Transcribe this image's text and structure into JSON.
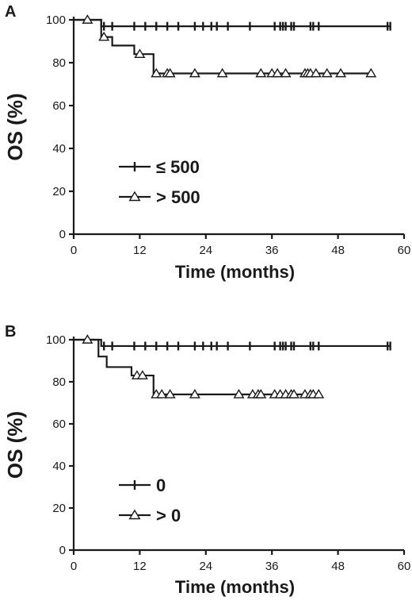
{
  "chart_data": [
    {
      "type": "line",
      "panel_label": "A",
      "xlabel": "Time (months)",
      "ylabel": "OS (%)",
      "xlim": [
        0,
        60
      ],
      "ylim": [
        0,
        100
      ],
      "x_ticks": [
        "0",
        "12",
        "24",
        "36",
        "48",
        "60"
      ],
      "y_ticks": [
        "0",
        "20",
        "40",
        "60",
        "80",
        "100"
      ],
      "legend_position": "lower-left",
      "series": [
        {
          "name": "≤ 500",
          "marker": "plus",
          "color": "#1a1a1a",
          "steps": [
            [
              0,
              100
            ],
            [
              5,
              97
            ],
            [
              57.5,
              97
            ]
          ],
          "censored": [
            [
              5.5,
              97
            ],
            [
              7,
              97
            ],
            [
              11,
              97
            ],
            [
              13,
              97
            ],
            [
              15,
              97
            ],
            [
              17,
              97
            ],
            [
              19,
              97
            ],
            [
              22,
              97
            ],
            [
              23.5,
              97
            ],
            [
              25,
              97
            ],
            [
              26,
              97
            ],
            [
              28,
              97
            ],
            [
              32,
              97
            ],
            [
              36.5,
              97
            ],
            [
              37.5,
              97
            ],
            [
              38,
              97
            ],
            [
              38.5,
              97
            ],
            [
              39.5,
              97
            ],
            [
              40,
              97
            ],
            [
              43,
              97
            ],
            [
              43.5,
              97
            ],
            [
              44.5,
              97
            ],
            [
              57,
              97
            ],
            [
              57.5,
              97
            ]
          ]
        },
        {
          "name": "> 500",
          "marker": "triangle",
          "color": "#1a1a1a",
          "steps": [
            [
              0,
              100
            ],
            [
              5,
              92
            ],
            [
              7,
              88
            ],
            [
              9,
              88
            ],
            [
              11,
              84
            ],
            [
              13,
              84
            ],
            [
              14.5,
              75
            ],
            [
              54,
              75
            ]
          ],
          "censored": [
            [
              2.5,
              100
            ],
            [
              5.5,
              92
            ],
            [
              12,
              84
            ],
            [
              15,
              75
            ],
            [
              17,
              75
            ],
            [
              17.5,
              75
            ],
            [
              22,
              75
            ],
            [
              27,
              75
            ],
            [
              34,
              75
            ],
            [
              36,
              75
            ],
            [
              37,
              75
            ],
            [
              38.5,
              75
            ],
            [
              42,
              75
            ],
            [
              42.5,
              75
            ],
            [
              43,
              75
            ],
            [
              44,
              75
            ],
            [
              46,
              75
            ],
            [
              48.5,
              75
            ],
            [
              54,
              75
            ]
          ]
        }
      ]
    },
    {
      "type": "line",
      "panel_label": "B",
      "xlabel": "Time (months)",
      "ylabel": "OS (%)",
      "xlim": [
        0,
        60
      ],
      "ylim": [
        0,
        100
      ],
      "x_ticks": [
        "0",
        "12",
        "24",
        "36",
        "48",
        "60"
      ],
      "y_ticks": [
        "0",
        "20",
        "40",
        "60",
        "80",
        "100"
      ],
      "legend_position": "lower-left",
      "series": [
        {
          "name": "0",
          "marker": "plus",
          "color": "#1a1a1a",
          "steps": [
            [
              0,
              100
            ],
            [
              5,
              97
            ],
            [
              57.5,
              97
            ]
          ],
          "censored": [
            [
              5.5,
              97
            ],
            [
              7,
              97
            ],
            [
              11,
              97
            ],
            [
              13,
              97
            ],
            [
              15,
              97
            ],
            [
              17,
              97
            ],
            [
              19,
              97
            ],
            [
              22,
              97
            ],
            [
              23.5,
              97
            ],
            [
              25,
              97
            ],
            [
              26,
              97
            ],
            [
              28,
              97
            ],
            [
              32,
              97
            ],
            [
              36.5,
              97
            ],
            [
              37.5,
              97
            ],
            [
              38,
              97
            ],
            [
              38.5,
              97
            ],
            [
              39.5,
              97
            ],
            [
              40,
              97
            ],
            [
              43,
              97
            ],
            [
              43.5,
              97
            ],
            [
              44.5,
              97
            ],
            [
              57,
              97
            ],
            [
              57.5,
              97
            ]
          ]
        },
        {
          "name": "> 0",
          "marker": "triangle",
          "color": "#1a1a1a",
          "steps": [
            [
              0,
              100
            ],
            [
              4.5,
              92
            ],
            [
              6,
              87
            ],
            [
              9,
              87
            ],
            [
              10.5,
              83
            ],
            [
              13,
              83
            ],
            [
              14.5,
              74
            ],
            [
              44.5,
              74
            ]
          ],
          "censored": [
            [
              2.5,
              100
            ],
            [
              11.5,
              83
            ],
            [
              12.5,
              83
            ],
            [
              15,
              74
            ],
            [
              16,
              74
            ],
            [
              17.5,
              74
            ],
            [
              22,
              74
            ],
            [
              30,
              74
            ],
            [
              32.5,
              74
            ],
            [
              33.5,
              74
            ],
            [
              34,
              74
            ],
            [
              36.5,
              74
            ],
            [
              37.5,
              74
            ],
            [
              38.5,
              74
            ],
            [
              39.5,
              74
            ],
            [
              40,
              74
            ],
            [
              42,
              74
            ],
            [
              43,
              74
            ],
            [
              43.5,
              74
            ],
            [
              44.5,
              74
            ]
          ]
        }
      ]
    }
  ]
}
